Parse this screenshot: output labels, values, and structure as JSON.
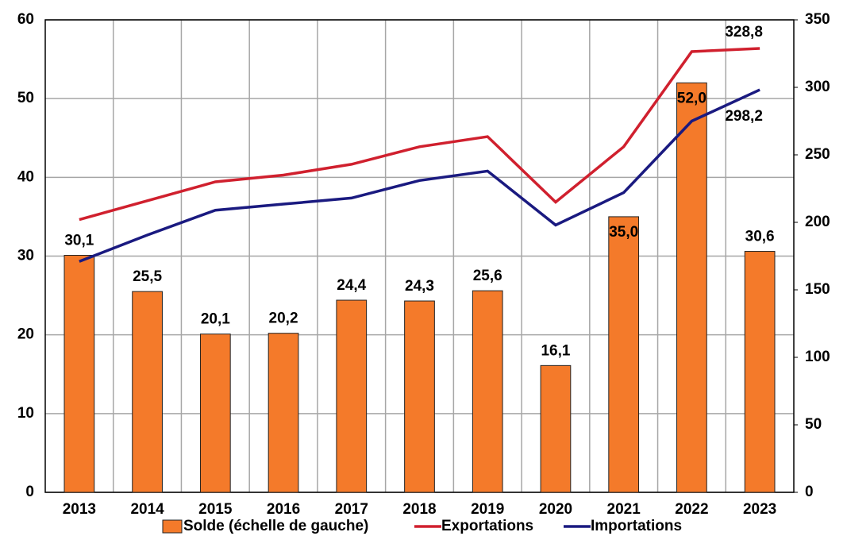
{
  "chart_data": {
    "type": "bar",
    "categories": [
      "2013",
      "2014",
      "2015",
      "2016",
      "2017",
      "2018",
      "2019",
      "2020",
      "2021",
      "2022",
      "2023"
    ],
    "values": [
      30.1,
      25.5,
      20.1,
      20.2,
      24.4,
      24.3,
      25.6,
      16.1,
      35.0,
      52.0,
      30.6
    ],
    "value_labels": [
      "30,1",
      "25,5",
      "20,1",
      "20,2",
      "24,4",
      "24,3",
      "25,6",
      "16,1",
      "35,0",
      "52,0",
      "30,6"
    ],
    "name": "Solde (échelle de gauche)",
    "color": "#f47a2a",
    "ylim": [
      0,
      60
    ],
    "yticks": [
      0,
      10,
      20,
      30,
      40,
      50,
      60
    ],
    "y2lim": [
      0,
      350
    ],
    "y2ticks": [
      0,
      50,
      100,
      150,
      200,
      250,
      300,
      350
    ],
    "grid": true,
    "legend": "bottom",
    "series": [
      {
        "name": "Exportations",
        "color": "#d0202e",
        "axis": "y2",
        "type": "line",
        "values": [
          202,
          216,
          230,
          235,
          243,
          256,
          263.5,
          215,
          256,
          326.5,
          328.8
        ],
        "value_labels": [
          null,
          null,
          null,
          null,
          null,
          null,
          null,
          null,
          null,
          null,
          "328,8"
        ]
      },
      {
        "name": "Importations",
        "color": "#1a1a80",
        "axis": "y2",
        "type": "line",
        "values": [
          171,
          190.6,
          209,
          213.5,
          218,
          231,
          238,
          198,
          222,
          275,
          298.2
        ],
        "value_labels": [
          null,
          null,
          null,
          null,
          null,
          null,
          null,
          null,
          null,
          null,
          "298,2"
        ]
      }
    ]
  }
}
